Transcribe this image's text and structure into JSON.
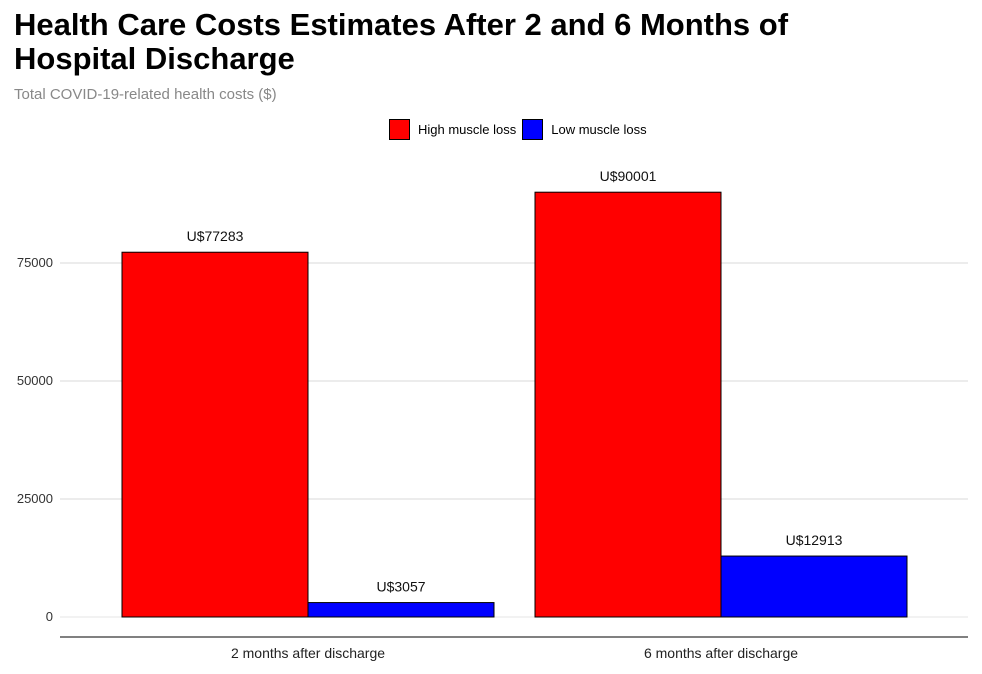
{
  "chart_data": {
    "type": "bar",
    "title": "Health Care Costs Estimates After 2 and 6 Months of Hospital Discharge",
    "subtitle": "Total COVID-19-related health costs ($)",
    "categories": [
      "2 months after discharge",
      "6 months after discharge"
    ],
    "series": [
      {
        "name": "High muscle loss",
        "color": "#ff0000",
        "values": [
          77283,
          90001
        ],
        "labels": [
          "U$77283",
          "U$90001"
        ]
      },
      {
        "name": "Low muscle loss",
        "color": "#0000ff",
        "values": [
          3057,
          12913
        ],
        "labels": [
          "U$3057",
          "U$12913"
        ]
      }
    ],
    "yticks": [
      0,
      25000,
      50000,
      75000
    ],
    "ylim": [
      0,
      100000
    ],
    "grid": true,
    "legend_position": "top"
  }
}
